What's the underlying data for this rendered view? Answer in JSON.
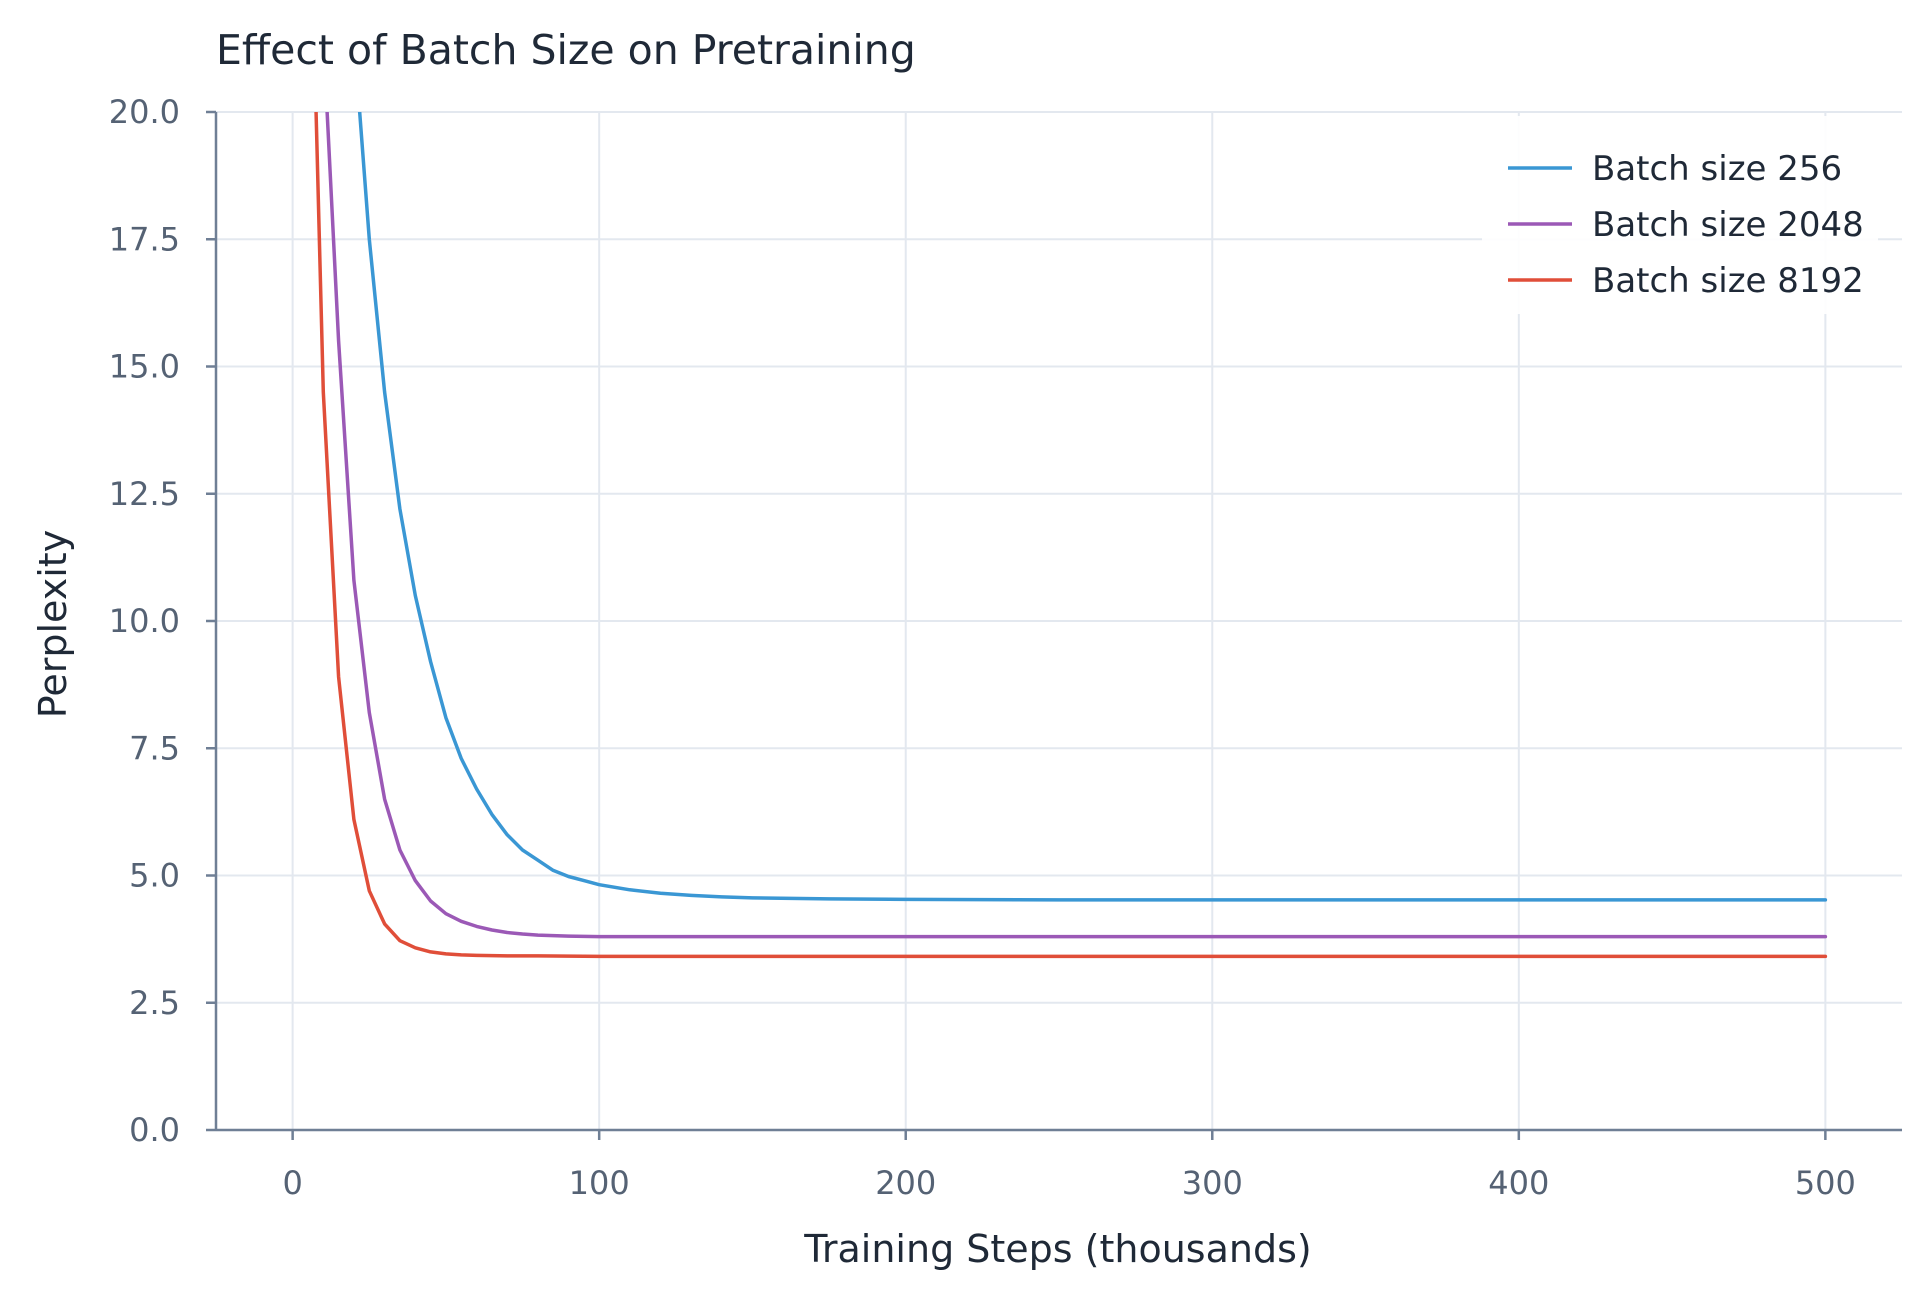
{
  "chart_data": {
    "type": "line",
    "title": "Effect of Batch Size on Pretraining",
    "xlabel": "Training Steps (thousands)",
    "ylabel": "Perplexity",
    "xlim": [
      -25,
      525
    ],
    "ylim": [
      0,
      20
    ],
    "x_ticks": [
      0,
      100,
      200,
      300,
      400,
      500
    ],
    "x_tick_labels": [
      "0",
      "100",
      "200",
      "300",
      "400",
      "500"
    ],
    "y_ticks": [
      0,
      2.5,
      5,
      7.5,
      10,
      12.5,
      15,
      17.5,
      20
    ],
    "y_tick_labels": [
      "0.0",
      "2.5",
      "5.0",
      "7.5",
      "10.0",
      "12.5",
      "15.0",
      "17.5",
      "20.0"
    ],
    "grid": true,
    "legend_position": "top-right",
    "series": [
      {
        "name": "Batch size 256",
        "color": "#3a97d4",
        "x": [
          20,
          25,
          30,
          35,
          40,
          45,
          50,
          55,
          60,
          65,
          70,
          75,
          80,
          85,
          90,
          95,
          100,
          110,
          120,
          130,
          140,
          150,
          175,
          200,
          250,
          300,
          350,
          400,
          450,
          500
        ],
        "y": [
          21.5,
          17.5,
          14.5,
          12.2,
          10.5,
          9.2,
          8.1,
          7.3,
          6.7,
          6.2,
          5.8,
          5.5,
          5.3,
          5.1,
          4.98,
          4.9,
          4.82,
          4.72,
          4.65,
          4.61,
          4.58,
          4.56,
          4.54,
          4.53,
          4.52,
          4.52,
          4.52,
          4.52,
          4.52,
          4.52
        ]
      },
      {
        "name": "Batch size 2048",
        "color": "#9b59b6",
        "x": [
          10,
          15,
          20,
          25,
          30,
          35,
          40,
          45,
          50,
          55,
          60,
          65,
          70,
          75,
          80,
          90,
          100,
          120,
          150,
          200,
          300,
          400,
          500
        ],
        "y": [
          21.5,
          15.5,
          10.8,
          8.2,
          6.5,
          5.5,
          4.9,
          4.5,
          4.25,
          4.1,
          4.0,
          3.93,
          3.88,
          3.85,
          3.83,
          3.81,
          3.8,
          3.8,
          3.8,
          3.8,
          3.8,
          3.8,
          3.8
        ]
      },
      {
        "name": "Batch size 8192",
        "color": "#e04e39",
        "x": [
          7,
          10,
          15,
          20,
          25,
          30,
          35,
          40,
          45,
          50,
          55,
          60,
          70,
          80,
          100,
          150,
          200,
          300,
          400,
          500
        ],
        "y": [
          21.5,
          14.5,
          8.9,
          6.1,
          4.7,
          4.05,
          3.72,
          3.58,
          3.5,
          3.46,
          3.44,
          3.43,
          3.42,
          3.42,
          3.41,
          3.41,
          3.41,
          3.41,
          3.41,
          3.41
        ]
      }
    ]
  }
}
